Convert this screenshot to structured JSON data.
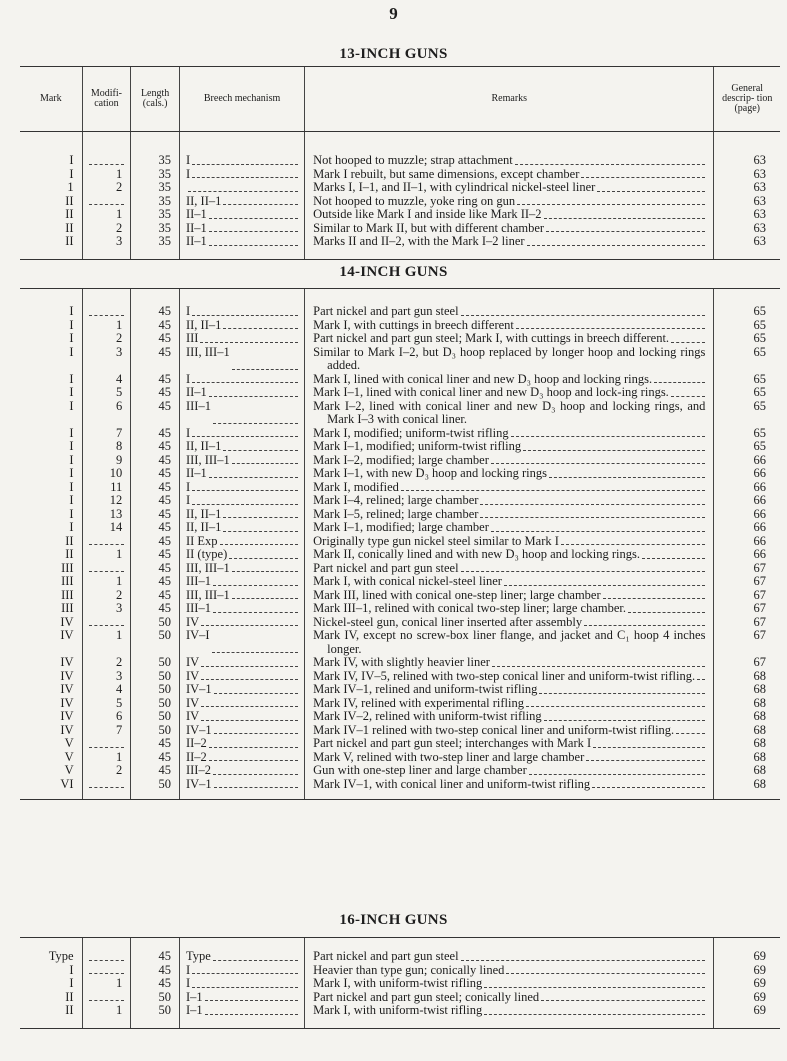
{
  "page_number": "9",
  "headers": {
    "mark": "Mark",
    "modification": "Modifi- cation",
    "length": "Length (cals.)",
    "breech": "Breech mechanism",
    "remarks": "Remarks",
    "page": "General descrip- tion (page)"
  },
  "sections": [
    {
      "title": "13-INCH GUNS",
      "rows": [
        {
          "mark": "I",
          "mod": "",
          "len": "35",
          "br": "I",
          "rem": "Not hooped to muzzle; strap attachment",
          "pg": "63"
        },
        {
          "mark": "I",
          "mod": "1",
          "len": "35",
          "br": "I",
          "rem": "Mark I rebuilt, but same dimensions, except chamber",
          "pg": "63"
        },
        {
          "mark": "1",
          "mod": "2",
          "len": "35",
          "br": "",
          "rem": "Marks I, I–1, and II–1, with cylindrical nickel-steel liner",
          "pg": "63"
        },
        {
          "mark": "II",
          "mod": "",
          "len": "35",
          "br": "II, II–1",
          "rem": "Not hooped to muzzle, yoke ring on gun",
          "pg": "63"
        },
        {
          "mark": "II",
          "mod": "1",
          "len": "35",
          "br": "II–1",
          "rem": "Outside like Mark I and inside like Mark II–2",
          "pg": "63"
        },
        {
          "mark": "II",
          "mod": "2",
          "len": "35",
          "br": "II–1",
          "rem": "Similar to Mark II, but with different chamber",
          "pg": "63"
        },
        {
          "mark": "II",
          "mod": "3",
          "len": "35",
          "br": "II–1",
          "rem": "Marks II and II–2, with the Mark I–2 liner",
          "pg": "63"
        }
      ]
    },
    {
      "title": "14-INCH GUNS",
      "rows": [
        {
          "mark": "I",
          "mod": "",
          "len": "45",
          "br": "I",
          "rem": "Part nickel and part gun steel",
          "pg": "65"
        },
        {
          "mark": "I",
          "mod": "1",
          "len": "45",
          "br": "II, II–1",
          "rem": "Mark I, with cuttings in breech different",
          "pg": "65"
        },
        {
          "mark": "I",
          "mod": "2",
          "len": "45",
          "br": "III",
          "rem": "Part nickel and part gun steel; Mark I, with cuttings in breech different.",
          "pg": "65"
        },
        {
          "mark": "I",
          "mod": "3",
          "len": "45",
          "br": "III, III–1",
          "rem": "Similar to Mark I–2, but D₃ hoop replaced by longer hoop and locking rings added.",
          "pg": "65"
        },
        {
          "mark": "I",
          "mod": "4",
          "len": "45",
          "br": "I",
          "rem": "Mark I, lined with conical liner and new D₃ hoop and locking rings.",
          "pg": "65"
        },
        {
          "mark": "I",
          "mod": "5",
          "len": "45",
          "br": "II–1",
          "rem": "Mark I–1, lined with conical liner and new D₃ hoop and lock-ing rings.",
          "pg": "65"
        },
        {
          "mark": "I",
          "mod": "6",
          "len": "45",
          "br": "III–1",
          "rem": "Mark I–2, lined with conical liner and new D₃ hoop and locking rings, and Mark I–3 with conical liner.",
          "pg": "65"
        },
        {
          "mark": "I",
          "mod": "7",
          "len": "45",
          "br": "I",
          "rem": "Mark I, modified; uniform-twist rifling",
          "pg": "65"
        },
        {
          "mark": "I",
          "mod": "8",
          "len": "45",
          "br": "II, II–1",
          "rem": "Mark I–1, modified; uniform-twist rifling",
          "pg": "65"
        },
        {
          "mark": "I",
          "mod": "9",
          "len": "45",
          "br": "III, III–1",
          "rem": "Mark I–2, modified; large chamber",
          "pg": "66"
        },
        {
          "mark": "I",
          "mod": "10",
          "len": "45",
          "br": "II–1",
          "rem": "Mark I–1, with new D₃ hoop and locking rings",
          "pg": "66"
        },
        {
          "mark": "I",
          "mod": "11",
          "len": "45",
          "br": "I",
          "rem": "Mark I, modified",
          "pg": "66"
        },
        {
          "mark": "I",
          "mod": "12",
          "len": "45",
          "br": "I",
          "rem": "Mark I–4, relined; large chamber",
          "pg": "66"
        },
        {
          "mark": "I",
          "mod": "13",
          "len": "45",
          "br": "II, II–1",
          "rem": "Mark I–5, relined; large chamber",
          "pg": "66"
        },
        {
          "mark": "I",
          "mod": "14",
          "len": "45",
          "br": "II, II–1",
          "rem": "Mark I–1, modified; large chamber",
          "pg": "66"
        },
        {
          "mark": "II",
          "mod": "",
          "len": "45",
          "br": "II Exp",
          "rem": "Originally type gun nickel steel similar to Mark I",
          "pg": "66"
        },
        {
          "mark": "II",
          "mod": "1",
          "len": "45",
          "br": "II (type)",
          "rem": "Mark II, conically lined and with new D₃ hoop and locking rings.",
          "pg": "66"
        },
        {
          "mark": "III",
          "mod": "",
          "len": "45",
          "br": "III, III–1",
          "rem": "Part nickel and part gun steel",
          "pg": "67"
        },
        {
          "mark": "III",
          "mod": "1",
          "len": "45",
          "br": "III–1",
          "rem": "Mark I, with conical nickel-steel liner",
          "pg": "67"
        },
        {
          "mark": "III",
          "mod": "2",
          "len": "45",
          "br": "III, III–1",
          "rem": "Mark III, lined with conical one-step liner; large chamber",
          "pg": "67"
        },
        {
          "mark": "III",
          "mod": "3",
          "len": "45",
          "br": "III–1",
          "rem": "Mark III–1, relined with conical two-step liner; large chamber.",
          "pg": "67"
        },
        {
          "mark": "IV",
          "mod": "",
          "len": "50",
          "br": "IV",
          "rem": "Nickel-steel gun, conical liner inserted after assembly",
          "pg": "67"
        },
        {
          "mark": "IV",
          "mod": "1",
          "len": "50",
          "br": "IV–I",
          "rem": "Mark IV, except no screw-box liner flange, and jacket and C₁ hoop 4 inches longer.",
          "pg": "67"
        },
        {
          "mark": "IV",
          "mod": "2",
          "len": "50",
          "br": "IV",
          "rem": "Mark IV, with slightly heavier liner",
          "pg": "67"
        },
        {
          "mark": "IV",
          "mod": "3",
          "len": "50",
          "br": "IV",
          "rem": "Mark IV, IV–5, relined with two-step conical liner and uniform-twist rifling.",
          "pg": "68"
        },
        {
          "mark": "IV",
          "mod": "4",
          "len": "50",
          "br": "IV–1",
          "rem": "Mark IV–1, relined and uniform-twist rifling",
          "pg": "68"
        },
        {
          "mark": "IV",
          "mod": "5",
          "len": "50",
          "br": "IV",
          "rem": "Mark IV, relined with experimental rifling",
          "pg": "68"
        },
        {
          "mark": "IV",
          "mod": "6",
          "len": "50",
          "br": "IV",
          "rem": "Mark IV–2, relined with uniform-twist rifling",
          "pg": "68"
        },
        {
          "mark": "IV",
          "mod": "7",
          "len": "50",
          "br": "IV–1",
          "rem": "Mark IV–1 relined with two-step conical liner and uniform-twist rifling.",
          "pg": "68"
        },
        {
          "mark": "V",
          "mod": "",
          "len": "45",
          "br": "II–2",
          "rem": "Part nickel and part gun steel; interchanges with Mark I",
          "pg": "68"
        },
        {
          "mark": "V",
          "mod": "1",
          "len": "45",
          "br": "II–2",
          "rem": "Mark V, relined with two-step liner and large chamber",
          "pg": "68"
        },
        {
          "mark": "V",
          "mod": "2",
          "len": "45",
          "br": "III–2",
          "rem": "Gun with one-step liner and large chamber",
          "pg": "68"
        },
        {
          "mark": "VI",
          "mod": "",
          "len": "50",
          "br": "IV–1",
          "rem": "Mark IV–1, with conical liner and uniform-twist rifling",
          "pg": "68"
        }
      ]
    },
    {
      "title": "16-INCH GUNS",
      "rows": [
        {
          "mark": "Type",
          "mod": "",
          "len": "45",
          "br": "Type",
          "rem": "Part nickel and part gun steel",
          "pg": "69"
        },
        {
          "mark": "I",
          "mod": "",
          "len": "45",
          "br": "I",
          "rem": "Heavier than type gun; conically lined",
          "pg": "69"
        },
        {
          "mark": "I",
          "mod": "1",
          "len": "45",
          "br": "I",
          "rem": "Mark I, with uniform-twist rifling",
          "pg": "69"
        },
        {
          "mark": "II",
          "mod": "",
          "len": "50",
          "br": "I–1",
          "rem": "Part nickel and part gun steel; conically lined",
          "pg": "69"
        },
        {
          "mark": "II",
          "mod": "1",
          "len": "50",
          "br": "I–1",
          "rem": "Mark I, with uniform-twist rifling",
          "pg": "69"
        }
      ]
    }
  ]
}
